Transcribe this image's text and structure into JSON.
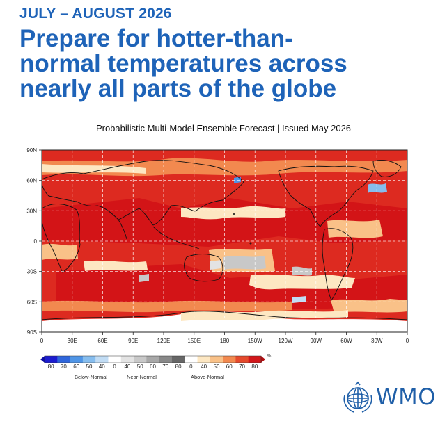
{
  "header": {
    "period": "JULY – AUGUST 2026",
    "headline_lines": [
      "Prepare for hotter-than-",
      "normal temperatures across",
      "nearly all parts of the globe"
    ]
  },
  "map": {
    "subtitle": "Probabilistic Multi-Model Ensemble Forecast | Issued May 2026",
    "lat_labels": [
      "90N",
      "60N",
      "30N",
      "0",
      "30S",
      "60S",
      "90S"
    ],
    "lon_labels": [
      "0",
      "30E",
      "60E",
      "90E",
      "120E",
      "150E",
      "180",
      "150W",
      "120W",
      "90W",
      "60W",
      "30W",
      "0"
    ]
  },
  "legend": {
    "unit": "%",
    "below_ticks": [
      "80",
      "70",
      "60",
      "50",
      "40"
    ],
    "near_ticks": [
      "0",
      "40",
      "50",
      "60",
      "70",
      "80"
    ],
    "above_ticks": [
      "0",
      "40",
      "50",
      "60",
      "70",
      "80"
    ],
    "below_label": "Below-Normal",
    "near_label": "Near-Normal",
    "above_label": "Above-Normal",
    "colors": {
      "below": [
        "#1c1ccf",
        "#2f66dc",
        "#4f95e6",
        "#86bdee",
        "#c1dcf4"
      ],
      "near": [
        "#ffffff",
        "#e3e3e3",
        "#c8c8c8",
        "#a8a8a8",
        "#888888",
        "#666666"
      ],
      "above": [
        "#ffffff",
        "#fde7c2",
        "#f9c188",
        "#f2894f",
        "#e54a2c",
        "#d2171a"
      ]
    }
  },
  "branding": {
    "org": "WMO"
  }
}
